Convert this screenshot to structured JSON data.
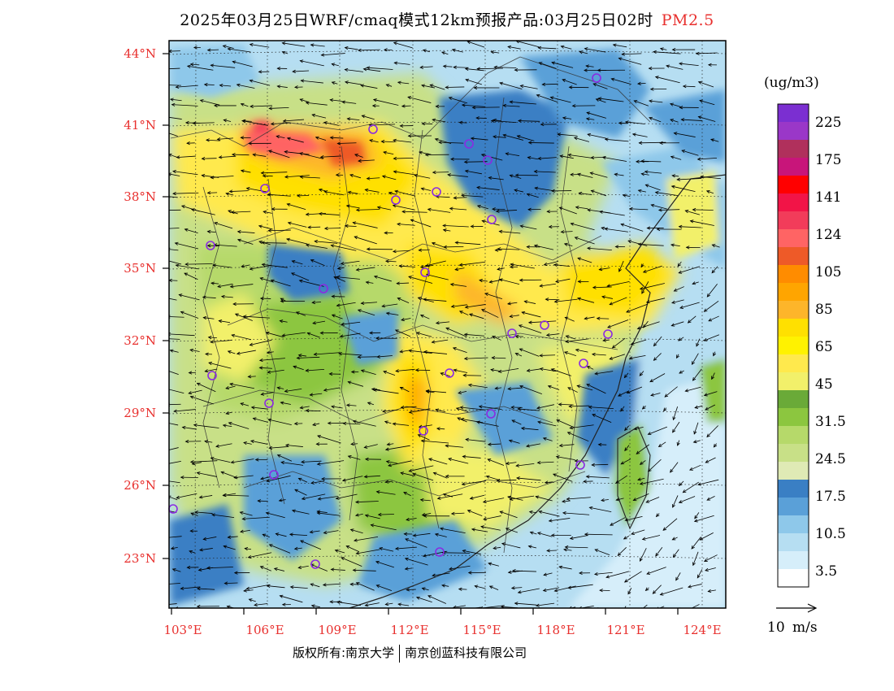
{
  "title": {
    "main": "2025年03月25日WRF/cmaq模式12km预报产品:03月25日02时",
    "variable": "PM2.5"
  },
  "map": {
    "lat_labels": [
      "44°N",
      "41°N",
      "38°N",
      "35°N",
      "32°N",
      "29°N",
      "26°N",
      "23°N"
    ],
    "lon_labels": [
      "103°E",
      "106°E",
      "109°E",
      "112°E",
      "115°E",
      "118°E",
      "121°E",
      "124°E"
    ],
    "lon_range": [
      102.9,
      124.0
    ],
    "lat_range": [
      21.0,
      44.6
    ]
  },
  "colorbar": {
    "unit": "(ug/m3)",
    "labels": [
      "225",
      "175",
      "141",
      "124",
      "105",
      "85",
      "65",
      "45",
      "31.5",
      "24.5",
      "17.5",
      "10.5",
      "3.5"
    ],
    "colors": [
      "#7b2fd1",
      "#9a37c8",
      "#b0305c",
      "#c8157a",
      "#ff0000",
      "#f21447",
      "#f23c5a",
      "#ff6464",
      "#ee5a28",
      "#ff8c00",
      "#ffa500",
      "#fdb52a",
      "#ffe000",
      "#fff200",
      "#ffe94d",
      "#f2f06a",
      "#6aaa38",
      "#8cc63f",
      "#b6d96a",
      "#c8e087",
      "#dfeab5",
      "#3a7fc4",
      "#5aa0d8",
      "#8ec8ea",
      "#b6def2",
      "#d6eefa",
      "#ffffff"
    ]
  },
  "wind_reference": {
    "label": "10 m/s"
  },
  "copyright": {
    "left": "版权所有:南京大学",
    "right": "南京创蓝科技有限公司"
  },
  "colors": {
    "accent": "#e8302e",
    "station_marker": "#8a2be2",
    "frame": "#000000"
  }
}
